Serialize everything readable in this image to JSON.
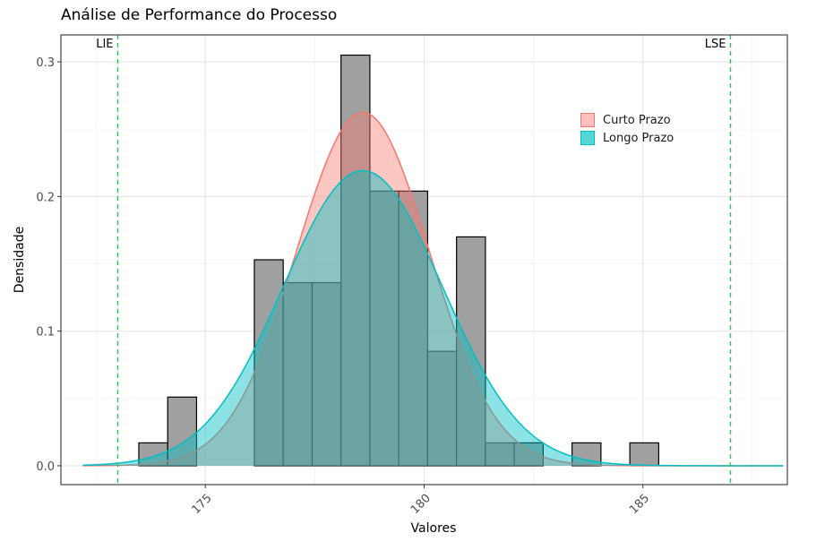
{
  "chart_data": {
    "type": "histogram",
    "title": "Análise de Performance do Processo",
    "xlabel": "Valores",
    "ylabel": "Densidade",
    "xlim": [
      171.7,
      188.3
    ],
    "ylim": [
      -0.014,
      0.32
    ],
    "x_ticks": [
      175,
      180,
      185
    ],
    "y_ticks": [
      0.0,
      0.1,
      0.2,
      0.3
    ],
    "y_tick_labels": [
      "0.0",
      "0.1",
      "0.2",
      "0.3"
    ],
    "grid": true,
    "histogram": {
      "color_fill": "#a0a0a0",
      "color_edge": "#000000",
      "bins": [
        {
          "x0": 173.48,
          "x1": 174.14,
          "density": 0.017
        },
        {
          "x0": 174.14,
          "x1": 174.8,
          "density": 0.051
        },
        {
          "x0": 174.8,
          "x1": 175.46,
          "density": 0.0
        },
        {
          "x0": 175.46,
          "x1": 176.12,
          "density": 0.0
        },
        {
          "x0": 176.12,
          "x1": 176.78,
          "density": 0.153
        },
        {
          "x0": 176.78,
          "x1": 177.44,
          "density": 0.136
        },
        {
          "x0": 177.44,
          "x1": 178.1,
          "density": 0.136
        },
        {
          "x0": 178.1,
          "x1": 178.76,
          "density": 0.305
        },
        {
          "x0": 178.76,
          "x1": 179.42,
          "density": 0.204
        },
        {
          "x0": 179.42,
          "x1": 180.08,
          "density": 0.204
        },
        {
          "x0": 180.08,
          "x1": 180.74,
          "density": 0.085
        },
        {
          "x0": 180.74,
          "x1": 181.4,
          "density": 0.17
        },
        {
          "x0": 181.4,
          "x1": 182.06,
          "density": 0.017
        },
        {
          "x0": 182.06,
          "x1": 182.72,
          "density": 0.017
        },
        {
          "x0": 182.72,
          "x1": 183.38,
          "density": 0.0
        },
        {
          "x0": 183.38,
          "x1": 184.04,
          "density": 0.017
        },
        {
          "x0": 184.04,
          "x1": 184.7,
          "density": 0.0
        },
        {
          "x0": 184.7,
          "x1": 185.36,
          "density": 0.017
        }
      ]
    },
    "series": [
      {
        "name": "Curto Prazo",
        "mean": 178.6,
        "sd": 1.52,
        "color": "#F8766D",
        "fill_opacity": 0.42
      },
      {
        "name": "Longo Prazo",
        "mean": 178.6,
        "sd": 1.82,
        "color": "#00BFC4",
        "fill_opacity": 0.45
      }
    ],
    "curve_range": [
      172.2,
      188.2
    ],
    "reference_lines": [
      {
        "label": "LIE",
        "x": 173.0,
        "color": "#2dc653",
        "style": "dashed"
      },
      {
        "label": "LSE",
        "x": 187.0,
        "color": "#2dc653",
        "style": "dashed"
      }
    ],
    "legend_position": "top-right"
  }
}
